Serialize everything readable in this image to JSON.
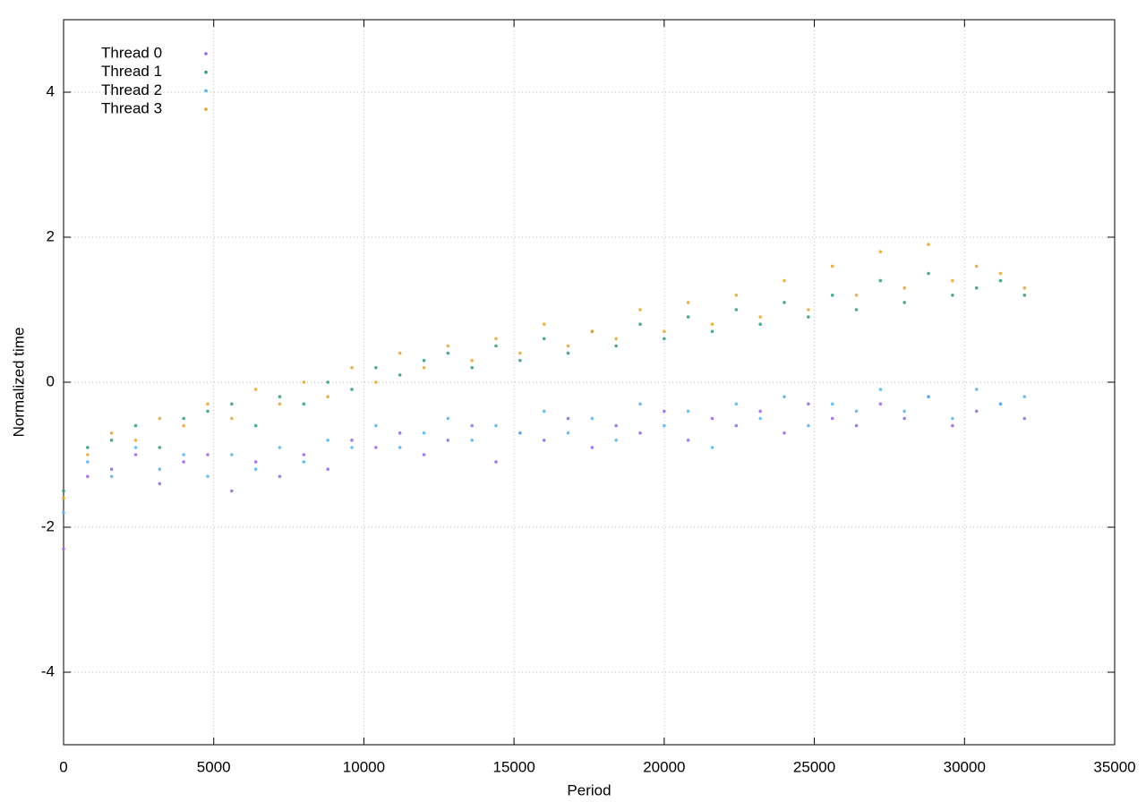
{
  "chart_data": {
    "type": "scatter",
    "x_label": "Period",
    "y_label": "Normalized time",
    "xlim": [
      0,
      35000
    ],
    "ylim": [
      -5,
      5
    ],
    "xticks": [
      0,
      5000,
      10000,
      15000,
      20000,
      25000,
      30000,
      35000
    ],
    "yticks": [
      -4,
      -2,
      0,
      2,
      4
    ],
    "grid": true,
    "legend": "top-left",
    "x": [
      0,
      800,
      1600,
      2400,
      3200,
      4000,
      4800,
      5600,
      6400,
      7200,
      8000,
      8800,
      9600,
      10400,
      11200,
      12000,
      12800,
      13600,
      14400,
      15200,
      16000,
      16800,
      17600,
      18400,
      19200,
      20000,
      20800,
      21600,
      22400,
      23200,
      24000,
      24800,
      25600,
      26400,
      27200,
      28000,
      28800,
      29600,
      30400,
      31200,
      32000
    ],
    "series": [
      {
        "name": "Thread 0",
        "color": "#9467e0",
        "values": [
          -2.3,
          -1.3,
          -1.2,
          -1.0,
          -1.4,
          -1.1,
          -1.0,
          -1.5,
          -1.1,
          -1.3,
          -1.0,
          -1.2,
          -0.8,
          -0.9,
          -0.7,
          -1.0,
          -0.8,
          -0.6,
          -1.1,
          -0.7,
          -0.8,
          -0.5,
          -0.9,
          -0.6,
          -0.7,
          -0.4,
          -0.8,
          -0.5,
          -0.6,
          -0.4,
          -0.7,
          -0.3,
          -0.5,
          -0.6,
          -0.3,
          -0.5,
          -0.2,
          -0.6,
          -0.4,
          -0.3,
          -0.5
        ]
      },
      {
        "name": "Thread 1",
        "color": "#2e9e70",
        "values": [
          -1.5,
          -0.9,
          -0.8,
          -0.6,
          -0.9,
          -0.5,
          -0.4,
          -0.3,
          -0.6,
          -0.2,
          -0.3,
          0.0,
          -0.1,
          0.2,
          0.1,
          0.3,
          0.4,
          0.2,
          0.5,
          0.3,
          0.6,
          0.4,
          0.7,
          0.5,
          0.8,
          0.6,
          0.9,
          0.7,
          1.0,
          0.8,
          1.1,
          0.9,
          1.2,
          1.0,
          1.4,
          1.1,
          1.5,
          1.2,
          1.3,
          1.4,
          1.2
        ]
      },
      {
        "name": "Thread 2",
        "color": "#56b4e9",
        "values": [
          -1.8,
          -1.1,
          -1.3,
          -0.9,
          -1.2,
          -1.0,
          -1.3,
          -1.0,
          -1.2,
          -0.9,
          -1.1,
          -0.8,
          -0.9,
          -0.6,
          -0.9,
          -0.7,
          -0.5,
          -0.8,
          -0.6,
          -0.7,
          -0.4,
          -0.7,
          -0.5,
          -0.8,
          -0.3,
          -0.6,
          -0.4,
          -0.9,
          -0.3,
          -0.5,
          -0.2,
          -0.6,
          -0.3,
          -0.4,
          -0.1,
          -0.4,
          -0.2,
          -0.5,
          -0.1,
          -0.3,
          -0.2
        ]
      },
      {
        "name": "Thread 3",
        "color": "#e6a530",
        "values": [
          -1.6,
          -1.0,
          -0.7,
          -0.8,
          -0.5,
          -0.6,
          -0.3,
          -0.5,
          -0.1,
          -0.3,
          0.0,
          -0.2,
          0.2,
          0.0,
          0.4,
          0.2,
          0.5,
          0.3,
          0.6,
          0.4,
          0.8,
          0.5,
          0.7,
          0.6,
          1.0,
          0.7,
          1.1,
          0.8,
          1.2,
          0.9,
          1.4,
          1.0,
          1.6,
          1.2,
          1.8,
          1.3,
          1.9,
          1.4,
          1.6,
          1.5,
          1.3
        ]
      }
    ]
  }
}
